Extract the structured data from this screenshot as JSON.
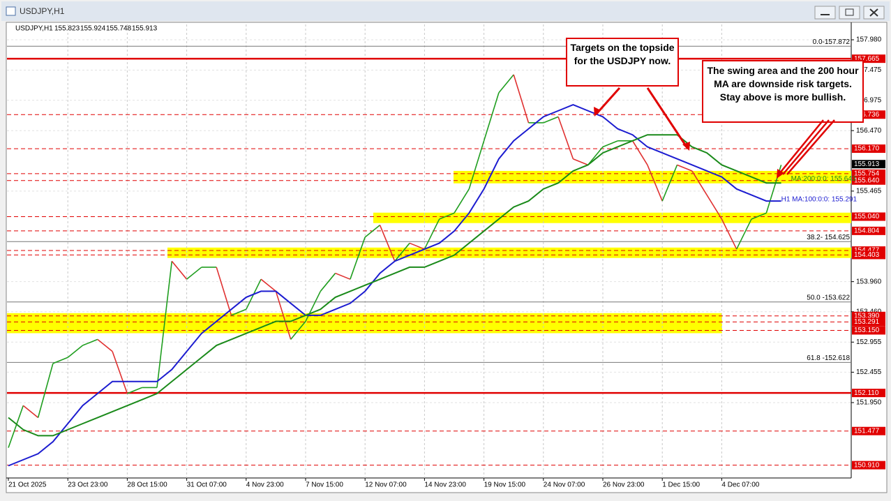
{
  "window_title": "USDJPY,H1",
  "chart_data": {
    "type": "line",
    "header": {
      "symbol": "USDJPY,H1",
      "open": 155.823,
      "high": 155.924,
      "low": 155.748,
      "close": 155.913
    },
    "categories": [
      "21 Oct 2025",
      null,
      null,
      null,
      "23 Oct 23:00",
      null,
      null,
      null,
      "28 Oct 15:00",
      null,
      null,
      null,
      "31 Oct 07:00",
      null,
      null,
      null,
      "4 Nov 23:00",
      null,
      null,
      null,
      "7 Nov 15:00",
      null,
      null,
      null,
      "12 Nov 07:00",
      null,
      null,
      null,
      "14 Nov 23:00",
      null,
      null,
      null,
      "19 Nov 15:00",
      null,
      null,
      null,
      "24 Nov 07:00",
      null,
      null,
      null,
      "26 Nov 23:00",
      null,
      null,
      null,
      "1 Dec 15:00",
      null,
      null,
      null,
      "4 Dec 07:00",
      null,
      null,
      null,
      null
    ],
    "series": [
      {
        "up_color": "#1f9e1f",
        "down_color": "#e03030",
        "values": [
          151.2,
          151.9,
          151.7,
          152.6,
          152.7,
          152.9,
          153.0,
          152.8,
          152.1,
          152.2,
          152.2,
          154.3,
          154.0,
          154.2,
          154.2,
          153.4,
          153.5,
          154.0,
          153.8,
          153.0,
          153.3,
          153.8,
          154.1,
          154.0,
          154.7,
          154.9,
          154.3,
          154.6,
          154.5,
          155.0,
          155.1,
          155.5,
          156.3,
          157.1,
          157.4,
          156.6,
          156.6,
          156.7,
          156.0,
          155.9,
          156.2,
          156.3,
          156.3,
          155.9,
          155.3,
          155.9,
          155.8,
          155.4,
          155.0,
          154.5,
          155.0,
          155.1,
          155.9
        ]
      },
      {
        "label": "H1 MA:100:0:0: 155.291",
        "color": "#1c1cd0",
        "values": [
          150.9,
          151.0,
          151.1,
          151.3,
          151.6,
          151.9,
          152.1,
          152.3,
          152.3,
          152.3,
          152.3,
          152.5,
          152.8,
          153.1,
          153.3,
          153.5,
          153.7,
          153.8,
          153.8,
          153.6,
          153.4,
          153.4,
          153.5,
          153.6,
          153.8,
          154.1,
          154.3,
          154.4,
          154.5,
          154.6,
          154.8,
          155.1,
          155.5,
          156.0,
          156.3,
          156.5,
          156.7,
          156.8,
          156.9,
          156.8,
          156.7,
          156.5,
          156.4,
          156.2,
          156.1,
          156.0,
          155.9,
          155.8,
          155.7,
          155.5,
          155.4,
          155.3,
          155.3
        ]
      },
      {
        "label": "MA:200:0:0: 155.643",
        "color": "#1a8a1a",
        "values": [
          151.7,
          151.5,
          151.4,
          151.4,
          151.5,
          151.6,
          151.7,
          151.8,
          151.9,
          152.0,
          152.1,
          152.3,
          152.5,
          152.7,
          152.9,
          153.0,
          153.1,
          153.2,
          153.3,
          153.3,
          153.4,
          153.5,
          153.7,
          153.8,
          153.9,
          154.0,
          154.1,
          154.2,
          154.2,
          154.3,
          154.4,
          154.6,
          154.8,
          155.0,
          155.2,
          155.3,
          155.5,
          155.6,
          155.8,
          155.9,
          156.1,
          156.2,
          156.3,
          156.4,
          156.4,
          156.4,
          156.2,
          156.1,
          155.9,
          155.8,
          155.7,
          155.6,
          155.6
        ]
      }
    ],
    "ylim": [
      150.697,
      158.235
    ],
    "yticks": [
      {
        "value": 157.98,
        "label": "157.980"
      },
      157.475,
      156.975,
      {
        "value": 156.47,
        "label": "156.470"
      },
      155.465,
      {
        "value": 153.96,
        "label": "153.960"
      },
      {
        "value": 153.46,
        "label": "153.460"
      },
      152.955,
      152.455,
      {
        "value": 151.95,
        "label": "151.950"
      }
    ],
    "grid": true,
    "current_price": 155.913,
    "levels": [
      {
        "value": 157.665,
        "solid": true
      },
      156.736,
      {
        "value": 156.17,
        "label": "156.170"
      },
      155.754,
      {
        "value": 155.64,
        "label": "155.640"
      },
      {
        "value": 155.04,
        "label": "155.040"
      },
      154.804,
      154.477,
      154.403,
      {
        "value": 153.39,
        "label": "153.390"
      },
      153.291,
      {
        "value": 153.15,
        "label": "153.150"
      },
      {
        "value": 152.11,
        "label": "152.110",
        "solid": true
      },
      151.477,
      {
        "value": 150.91,
        "label": "150.910"
      }
    ],
    "fib_levels": [
      {
        "value": 157.872,
        "label": "0.0-157.872"
      },
      {
        "value": 154.625,
        "label": "38.2- 154.625"
      },
      {
        "value": 153.622,
        "label": "50.0 -153.622"
      },
      {
        "value": 152.618,
        "label": "61.8 -152.618"
      }
    ],
    "zones": [
      [
        155.64,
        155.754
      ],
      [
        154.98,
        155.06
      ],
      [
        154.4,
        154.48
      ],
      [
        153.15,
        153.39
      ]
    ],
    "annotations": [
      "Targets on the topside for the USDJPY now.",
      "The swing area and the 200 hour MA are downside risk targets. Stay above is more bullish."
    ]
  }
}
